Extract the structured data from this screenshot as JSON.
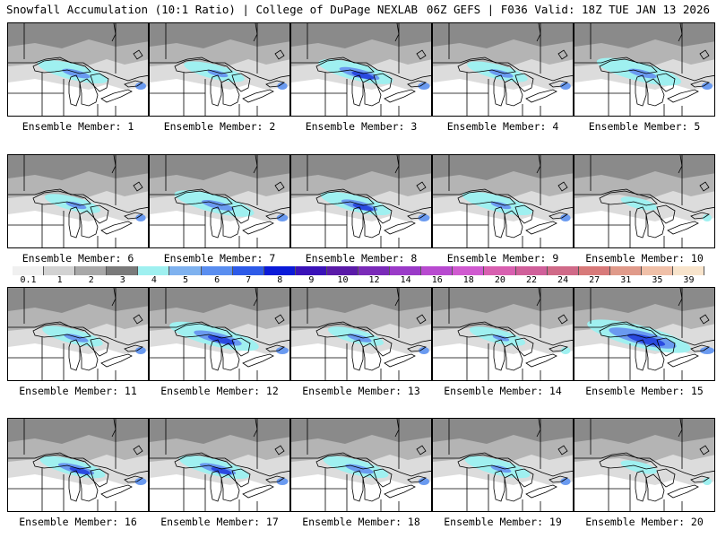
{
  "header": {
    "title_left": "Snowfall Accumulation (10:1 Ratio) | College of DuPage NEXLAB",
    "title_right": "06Z GEFS | F036 Valid: 18Z TUE JAN 13 2026"
  },
  "members": [
    {
      "label": "Ensemble Member: 1",
      "snow": "moderate",
      "cyan_w": 0.55,
      "blue_w": 0.25
    },
    {
      "label": "Ensemble Member: 2",
      "snow": "light",
      "cyan_w": 0.45,
      "blue_w": 0.15
    },
    {
      "label": "Ensemble Member: 3",
      "snow": "moderate",
      "cyan_w": 0.6,
      "blue_w": 0.4
    },
    {
      "label": "Ensemble Member: 4",
      "snow": "light",
      "cyan_w": 0.45,
      "blue_w": 0.2
    },
    {
      "label": "Ensemble Member: 5",
      "snow": "moderate",
      "cyan_w": 0.7,
      "blue_w": 0.25
    },
    {
      "label": "Ensemble Member: 6",
      "snow": "light",
      "cyan_w": 0.4,
      "blue_w": 0.15
    },
    {
      "label": "Ensemble Member: 7",
      "snow": "moderate",
      "cyan_w": 0.65,
      "blue_w": 0.3
    },
    {
      "label": "Ensemble Member: 8",
      "snow": "moderate",
      "cyan_w": 0.55,
      "blue_w": 0.35
    },
    {
      "label": "Ensemble Member: 9",
      "snow": "light",
      "cyan_w": 0.55,
      "blue_w": 0.15
    },
    {
      "label": "Ensemble Member: 10",
      "snow": "trace",
      "cyan_w": 0.2,
      "blue_w": 0.0
    },
    {
      "label": "Ensemble Member: 11",
      "snow": "light",
      "cyan_w": 0.45,
      "blue_w": 0.2
    },
    {
      "label": "Ensemble Member: 12",
      "snow": "heavy",
      "cyan_w": 0.75,
      "blue_w": 0.5
    },
    {
      "label": "Ensemble Member: 13",
      "snow": "light",
      "cyan_w": 0.4,
      "blue_w": 0.2
    },
    {
      "label": "Ensemble Member: 14",
      "snow": "light",
      "cyan_w": 0.4,
      "blue_w": 0.1
    },
    {
      "label": "Ensemble Member: 15",
      "snow": "heavy",
      "cyan_w": 0.9,
      "blue_w": 0.75
    },
    {
      "label": "Ensemble Member: 16",
      "snow": "moderate",
      "cyan_w": 0.5,
      "blue_w": 0.35
    },
    {
      "label": "Ensemble Member: 17",
      "snow": "moderate",
      "cyan_w": 0.55,
      "blue_w": 0.35
    },
    {
      "label": "Ensemble Member: 18",
      "snow": "moderate",
      "cyan_w": 0.5,
      "blue_w": 0.25
    },
    {
      "label": "Ensemble Member: 19",
      "snow": "light",
      "cyan_w": 0.5,
      "blue_w": 0.15
    },
    {
      "label": "Ensemble Member: 20",
      "snow": "trace",
      "cyan_w": 0.2,
      "blue_w": 0.0
    }
  ],
  "colorbar": {
    "labels": [
      "0.1",
      "1",
      "2",
      "3",
      "4",
      "5",
      "6",
      "7",
      "8",
      "9",
      "10",
      "12",
      "14",
      "16",
      "18",
      "20",
      "22",
      "24",
      "27",
      "31",
      "35",
      "39"
    ],
    "colors": [
      "#f0f0f0",
      "#d2d2d2",
      "#a8a8a8",
      "#7a7a7a",
      "#9ff0f0",
      "#7fb2ef",
      "#5a8ef0",
      "#2d5ae8",
      "#0a1ad8",
      "#3a12b8",
      "#5a1aa8",
      "#7a2ab8",
      "#9a3ac8",
      "#b84ad0",
      "#d05ad0",
      "#d860b0",
      "#d0609a",
      "#d06a88",
      "#d87a7a",
      "#e09a8a",
      "#f0c0a8",
      "#f8e4cc"
    ]
  },
  "colors": {
    "cyan": "#9ff0f0",
    "blue": "#6a9af0",
    "deep_blue": "#2a4ae0",
    "gray_dark": "#8a8a8a",
    "gray_light": "#dcdcdc",
    "land_white": "#ffffff"
  }
}
